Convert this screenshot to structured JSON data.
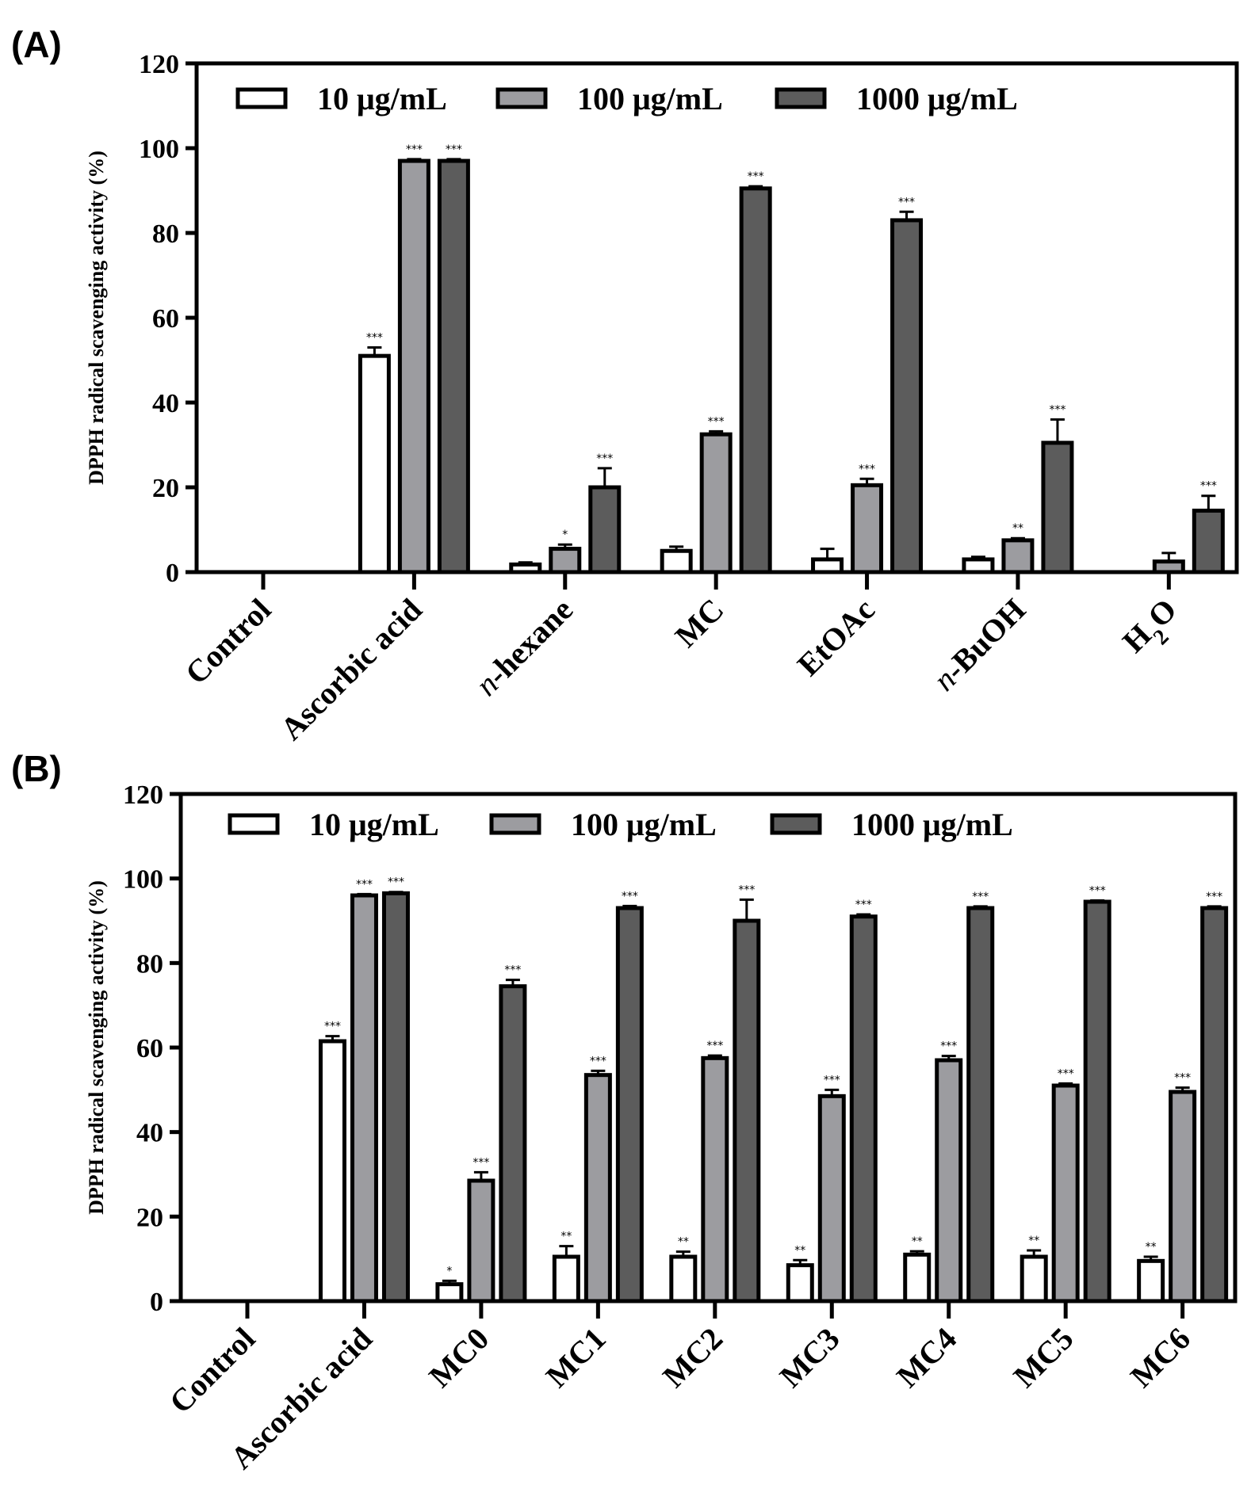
{
  "colors": {
    "c10": "#ffffff",
    "c100": "#9c9ca0",
    "c1000": "#5c5c5c",
    "axis": "#000000"
  },
  "chart_data": [
    {
      "panel": "(A)",
      "type": "bar",
      "ylabel": "DPPH radical scavenging activity (%)",
      "ylim": [
        0,
        120
      ],
      "yticks": [
        "0",
        "20",
        "40",
        "60",
        "80",
        "100",
        "120"
      ],
      "legend": [
        "10 μg/mL",
        "100 μg/mL",
        "1000 μg/mL"
      ],
      "categories": [
        {
          "pre": "",
          "italic": "",
          "main": "Control",
          "sub": "",
          "post": ""
        },
        {
          "pre": "",
          "italic": "",
          "main": "Ascorbic acid",
          "sub": "",
          "post": ""
        },
        {
          "pre": "",
          "italic": "n",
          "main": "-hexane",
          "sub": "",
          "post": ""
        },
        {
          "pre": "",
          "italic": "",
          "main": "MC",
          "sub": "",
          "post": ""
        },
        {
          "pre": "",
          "italic": "",
          "main": "EtOAc",
          "sub": "",
          "post": ""
        },
        {
          "pre": "",
          "italic": "n",
          "main": "-BuOH",
          "sub": "",
          "post": ""
        },
        {
          "pre": "",
          "italic": "",
          "main": "H",
          "sub": "2",
          "post": "O"
        }
      ],
      "series": [
        {
          "name": "10 μg/mL",
          "values": [
            0,
            51,
            1.8,
            5,
            3,
            3,
            0
          ],
          "errors": [
            0,
            2,
            0.5,
            1,
            2.5,
            0.6,
            0
          ],
          "sig": [
            "",
            "***",
            "",
            "",
            "",
            "",
            ""
          ]
        },
        {
          "name": "100 μg/mL",
          "values": [
            0,
            97,
            5.5,
            32.5,
            20.5,
            7.5,
            2.5
          ],
          "errors": [
            0,
            0.4,
            1,
            0.7,
            1.5,
            0.5,
            2
          ],
          "sig": [
            "",
            "***",
            "*",
            "***",
            "***",
            "**",
            ""
          ]
        },
        {
          "name": "1000 μg/mL",
          "values": [
            0,
            97,
            20,
            90.5,
            83,
            30.5,
            14.5
          ],
          "errors": [
            0,
            0.4,
            4.5,
            0.5,
            2,
            5.5,
            3.5
          ],
          "sig": [
            "",
            "***",
            "***",
            "***",
            "***",
            "***",
            "***"
          ]
        }
      ]
    },
    {
      "panel": "(B)",
      "type": "bar",
      "ylabel": "DPPH radical scavenging activity (%)",
      "ylim": [
        0,
        120
      ],
      "yticks": [
        "0",
        "20",
        "40",
        "60",
        "80",
        "100",
        "120"
      ],
      "legend": [
        "10 μg/mL",
        "100 μg/mL",
        "1000 μg/mL"
      ],
      "categories": [
        {
          "pre": "",
          "italic": "",
          "main": "Control",
          "sub": "",
          "post": ""
        },
        {
          "pre": "",
          "italic": "",
          "main": "Ascorbic acid",
          "sub": "",
          "post": ""
        },
        {
          "pre": "",
          "italic": "",
          "main": "MC0",
          "sub": "",
          "post": ""
        },
        {
          "pre": "",
          "italic": "",
          "main": "MC1",
          "sub": "",
          "post": ""
        },
        {
          "pre": "",
          "italic": "",
          "main": "MC2",
          "sub": "",
          "post": ""
        },
        {
          "pre": "",
          "italic": "",
          "main": "MC3",
          "sub": "",
          "post": ""
        },
        {
          "pre": "",
          "italic": "",
          "main": "MC4",
          "sub": "",
          "post": ""
        },
        {
          "pre": "",
          "italic": "",
          "main": "MC5",
          "sub": "",
          "post": ""
        },
        {
          "pre": "",
          "italic": "",
          "main": "MC6",
          "sub": "",
          "post": ""
        }
      ],
      "series": [
        {
          "name": "10 μg/mL",
          "values": [
            0,
            61.5,
            4,
            10.5,
            10.5,
            8.5,
            11,
            10.5,
            9.5
          ],
          "errors": [
            0,
            1.2,
            0.8,
            2.5,
            1.2,
            1.2,
            0.8,
            1.5,
            1
          ],
          "sig": [
            "",
            "***",
            "*",
            "**",
            "**",
            "**",
            "**",
            "**",
            "**"
          ]
        },
        {
          "name": "100 μg/mL",
          "values": [
            0,
            96,
            28.5,
            53.5,
            57.5,
            48.5,
            57,
            51,
            49.5
          ],
          "errors": [
            0,
            0.3,
            2,
            1,
            0.6,
            1.5,
            1,
            0.5,
            1
          ],
          "sig": [
            "",
            "***",
            "***",
            "***",
            "***",
            "***",
            "***",
            "***",
            "***"
          ]
        },
        {
          "name": "1000 μg/mL",
          "values": [
            0,
            96.5,
            74.5,
            93,
            90,
            91,
            93,
            94.5,
            93
          ],
          "errors": [
            0,
            0.3,
            1.5,
            0.5,
            5,
            0.5,
            0.4,
            0.3,
            0.4
          ],
          "sig": [
            "",
            "***",
            "***",
            "***",
            "***",
            "***",
            "***",
            "***",
            "***"
          ]
        }
      ]
    }
  ]
}
